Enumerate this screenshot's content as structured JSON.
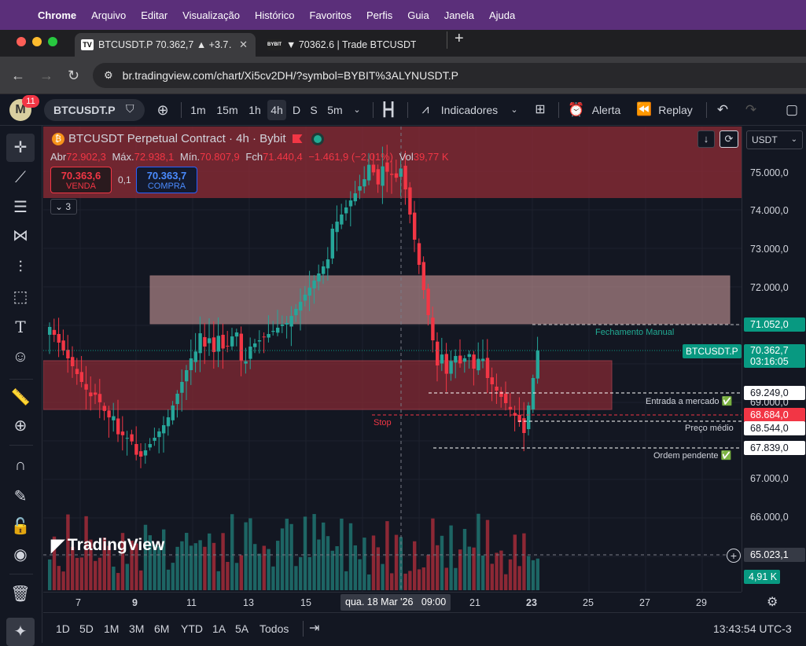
{
  "mac_menu": [
    "Chrome",
    "Arquivo",
    "Editar",
    "Visualização",
    "Histórico",
    "Favoritos",
    "Perfis",
    "Guia",
    "Janela",
    "Ajuda"
  ],
  "tabs": [
    {
      "icon": "TV",
      "title": "BTCUSDT.P 70.362,7 ▲ +3.7…"
    },
    {
      "icon": "BYBIT",
      "title": "▼ 70362.6 | Trade BTCUSDT"
    }
  ],
  "url": "br.tradingview.com/chart/Xi5cv2DH/?symbol=BYBIT%3ALYNUSDT.P",
  "toolbar": {
    "badge": "11",
    "avatar": "M",
    "symbol": "BTCUSDT.P",
    "intervals": [
      "1m",
      "15m",
      "1h",
      "4h",
      "D",
      "S",
      "5m"
    ],
    "active_interval": "4h",
    "indicators": "Indicadores",
    "alert": "Alerta",
    "replay": "Replay"
  },
  "legend": {
    "title": "BTCUSDT Perpetual Contract · 4h · Bybit",
    "open_label": "Abr",
    "open": "72.902,3",
    "high_label": "Máx.",
    "high": "72.938,1",
    "low_label": "Mín.",
    "low": "70.807,9",
    "close_label": "Fch",
    "close": "71.440,4",
    "change": "−1.461,9 (−2,01%)",
    "vol_label": "Vol",
    "vol": "39,77 K",
    "sell_price": "70.363,6",
    "sell_label": "VENDA",
    "spread": "0,1",
    "buy_price": "70.363,7",
    "buy_label": "COMPRA",
    "collapse": "3"
  },
  "currency": "USDT",
  "price_ticks": [
    "75.000,0",
    "74.000,0",
    "73.000,0",
    "72.000,0",
    "69.000,0",
    "67.000,0",
    "66.000,0"
  ],
  "price_labels": {
    "manual_close": "71.052,0",
    "symbol_tag": "BTCUSDT.P",
    "last": "70.362,7",
    "countdown": "03:16:05",
    "entry": "69.249,0",
    "stop": "68.684,0",
    "avg": "68.544,0",
    "pending": "67.839,0",
    "crosshair": "65.023,1",
    "volume": "4,91 K"
  },
  "annotations": {
    "manual_close": "Fechamento Manual",
    "entry": "Entrada a mercado ✅",
    "stop": "Stop",
    "avg": "Preço médio",
    "pending": "Ordem pendente ✅"
  },
  "time_ticks": [
    "7",
    "9",
    "11",
    "13",
    "15",
    "21",
    "23",
    "25",
    "27",
    "29"
  ],
  "crosshair_time": "qua. 18 Mar '26   09:00",
  "ranges": [
    "1D",
    "5D",
    "1M",
    "3M",
    "6M",
    "YTD",
    "1A",
    "5A",
    "Todos"
  ],
  "clock": "13:43:54 UTC-3",
  "logo": "TradingView",
  "colors": {
    "up": "#26a69a",
    "down": "#f23645",
    "zone_red": "#8b2a35",
    "zone_pink": "#d9a3a3"
  }
}
